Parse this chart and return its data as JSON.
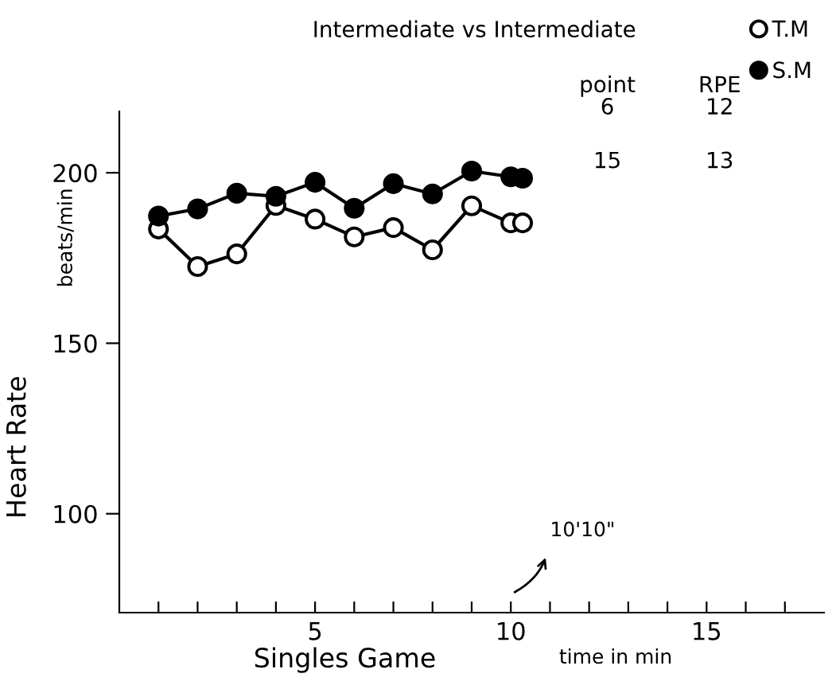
{
  "chart_data": {
    "type": "line",
    "title": "Intermediate vs Intermediate",
    "xlabel": "Singles Game",
    "ylabel": "Heart Rate",
    "annotations": [
      "beats/min",
      "time in min",
      "point",
      "RPE",
      "6",
      "12",
      "15",
      "13",
      "10'10\""
    ],
    "x": [
      1,
      2,
      3,
      4,
      5,
      6,
      7,
      8,
      9,
      10,
      10.3
    ],
    "series": [
      {
        "name": "T.M",
        "color": "#ffffff",
        "values": [
          183.5,
          172.5,
          176.2,
          190.4,
          186.4,
          181.2,
          183.9,
          177.4,
          190.3,
          185.3,
          185.3
        ]
      },
      {
        "name": "S.M",
        "color": "#000000",
        "values": [
          187.3,
          189.4,
          194.0,
          193.1,
          197.2,
          189.6,
          196.8,
          193.8,
          200.5,
          198.8,
          198.4
        ]
      }
    ],
    "xlim": [
      0,
      18
    ],
    "ylim": [
      71,
      218
    ],
    "xticks": [
      {
        "value": 1,
        "label": null
      },
      {
        "value": 2,
        "label": null
      },
      {
        "value": 3,
        "label": null
      },
      {
        "value": 4,
        "label": null
      },
      5,
      {
        "value": 6,
        "label": null
      },
      {
        "value": 7,
        "label": null
      },
      {
        "value": 8,
        "label": null
      },
      {
        "value": 9,
        "label": null
      },
      10,
      {
        "value": 11,
        "label": null
      },
      {
        "value": 12,
        "label": null
      },
      {
        "value": 13,
        "label": null
      },
      {
        "value": 14,
        "label": null
      },
      15,
      {
        "value": 16,
        "label": null
      },
      {
        "value": 17,
        "label": null
      }
    ],
    "yticks": [
      100,
      150,
      200
    ],
    "marker": "circle",
    "line_style": "solid",
    "grid": false,
    "legend": "top right"
  }
}
